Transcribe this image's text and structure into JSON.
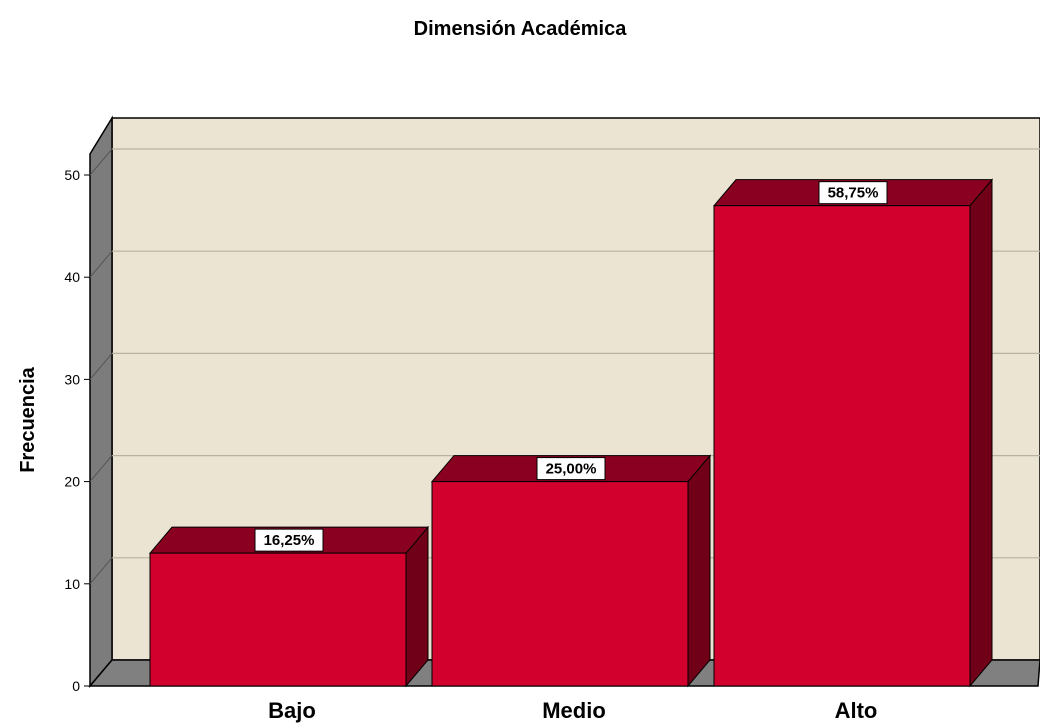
{
  "chart_data": {
    "type": "bar",
    "title": "Dimensión Académica",
    "xlabel": "",
    "ylabel": "Frecuencia",
    "categories": [
      "Bajo",
      "Medio",
      "Alto"
    ],
    "values": [
      13,
      20,
      47
    ],
    "data_labels": [
      "16,25%",
      "25,00%",
      "58,75%"
    ],
    "yticks": [
      0,
      10,
      20,
      30,
      40,
      50
    ],
    "ylim": [
      0,
      53
    ],
    "grid": true,
    "style": "3d",
    "colors": {
      "bar_front": "#d2002d",
      "bar_top": "#8a0020",
      "bar_side": "#6f0018",
      "plot_back": "#ebe4d2",
      "wall_side": "#7c7c7c",
      "floor": "#808080",
      "gridline": "#b9b2a0"
    }
  }
}
